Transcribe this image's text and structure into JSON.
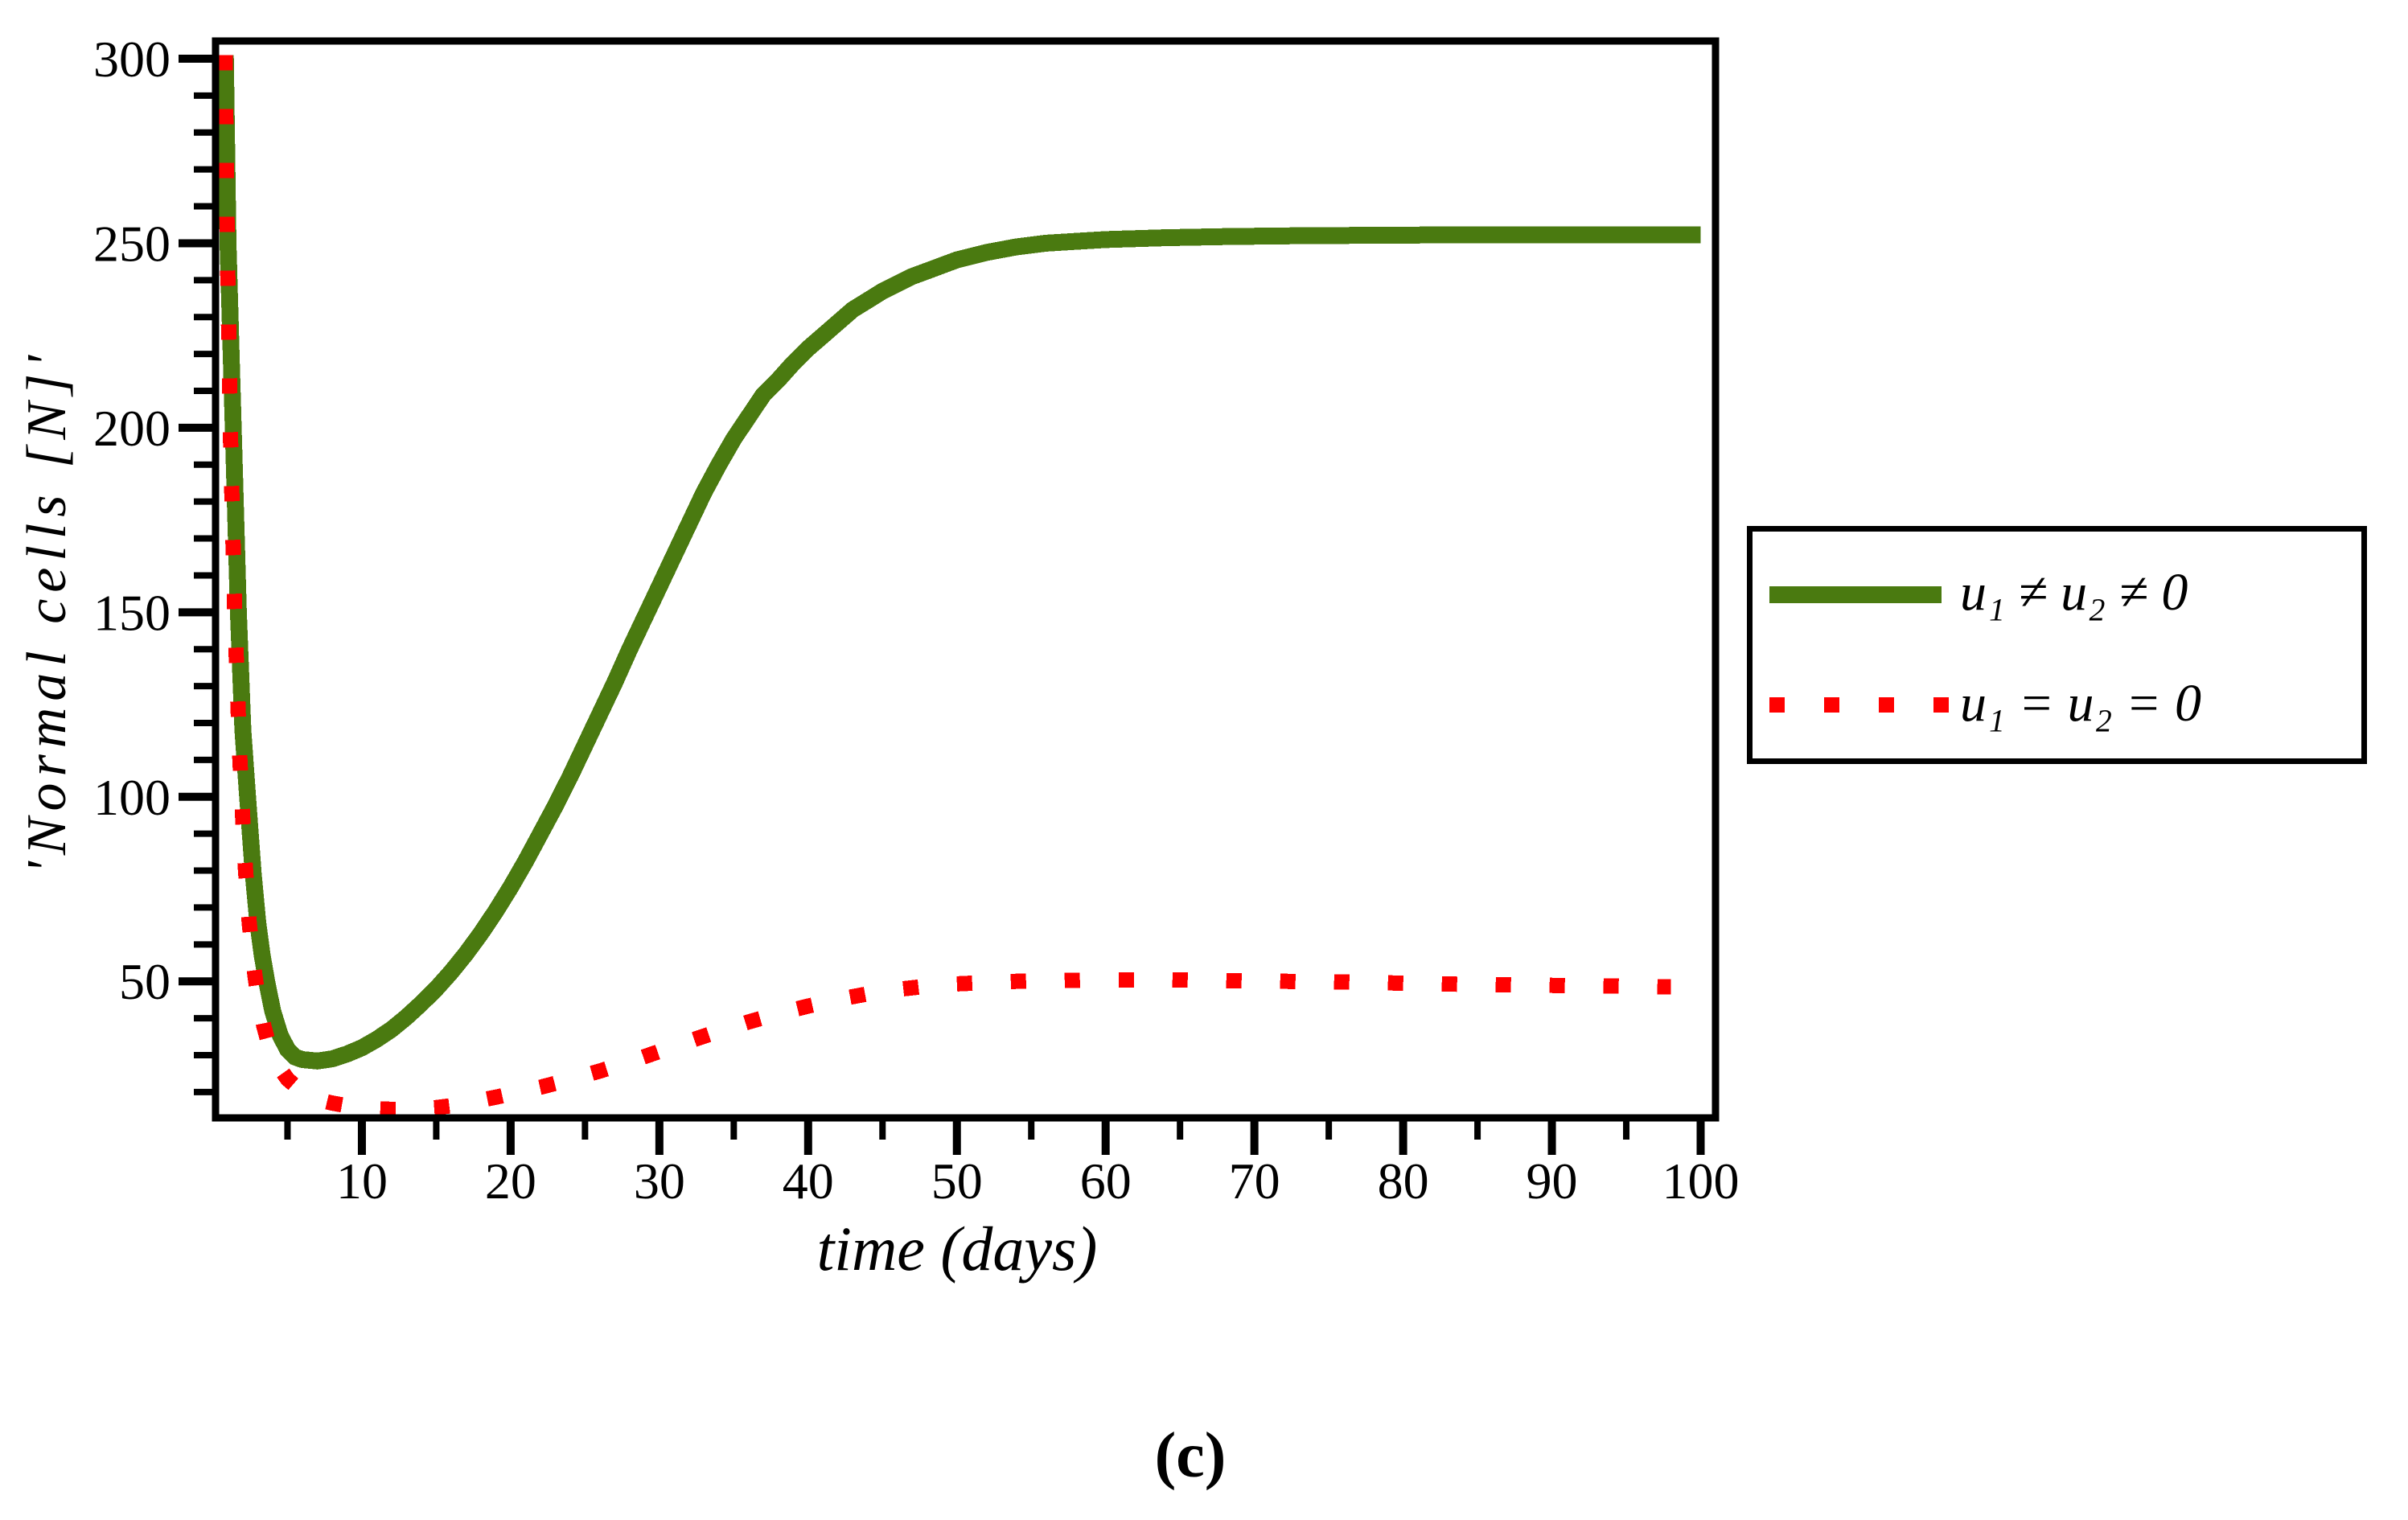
{
  "figure": {
    "caption": "(c)"
  },
  "colors": {
    "series_treated": "#4a7a10",
    "series_untreated": "#ff0000",
    "axis": "#000000",
    "background": "#ffffff"
  },
  "legend": {
    "items": [
      {
        "label": "u₁ ≠ u₂ ≠ 0",
        "swatch": "green-solid-line"
      },
      {
        "label": "u₁ = u₂ = 0",
        "swatch": "red-dotted-line"
      }
    ]
  },
  "chart_data": {
    "type": "line",
    "title": "",
    "xlabel": "time (days)",
    "ylabel": "'Normal cells [N]'",
    "xlim": [
      0,
      101
    ],
    "ylim": [
      13,
      300
    ],
    "grid": false,
    "legend_position": "outside-right",
    "x_ticks_major": [
      10,
      20,
      30,
      40,
      50,
      60,
      70,
      80,
      90,
      100
    ],
    "x_tick_major_step": 10,
    "x_tick_minor_step": 5,
    "y_ticks_major": [
      50,
      100,
      150,
      200,
      250,
      300
    ],
    "y_tick_major_step": 50,
    "y_tick_minor_step": 10,
    "series": [
      {
        "name": "u₁ ≠ u₂ ≠ 0",
        "style": "solid",
        "color": "#4a7a10",
        "stroke_width": 21,
        "points": [
          [
            0.82,
            301
          ],
          [
            1.0,
            250
          ],
          [
            1.35,
            200
          ],
          [
            1.7,
            150
          ],
          [
            2.0,
            118
          ],
          [
            2.35,
            98
          ],
          [
            2.7,
            79
          ],
          [
            3.0,
            66
          ],
          [
            3.3,
            57
          ],
          [
            3.6,
            50
          ],
          [
            4.0,
            42
          ],
          [
            4.5,
            35.5
          ],
          [
            5.0,
            31.5
          ],
          [
            5.5,
            29.5
          ],
          [
            6.0,
            28.8
          ],
          [
            7.0,
            28.4
          ],
          [
            8.0,
            29
          ],
          [
            9,
            30.3
          ],
          [
            10,
            32
          ],
          [
            11,
            34.3
          ],
          [
            12,
            37
          ],
          [
            13,
            40.3
          ],
          [
            14,
            44
          ],
          [
            15,
            48
          ],
          [
            16,
            52.5
          ],
          [
            17,
            57.5
          ],
          [
            18,
            63
          ],
          [
            19,
            69
          ],
          [
            20,
            75.5
          ],
          [
            21,
            82.5
          ],
          [
            22,
            90
          ],
          [
            23,
            97.5
          ],
          [
            24,
            105.5
          ],
          [
            25,
            114
          ],
          [
            26,
            122.5
          ],
          [
            27,
            131
          ],
          [
            28,
            140
          ],
          [
            29,
            148.5
          ],
          [
            30,
            157
          ],
          [
            31,
            165.5
          ],
          [
            32,
            174
          ],
          [
            33,
            182.5
          ],
          [
            34,
            190
          ],
          [
            35,
            197
          ],
          [
            36,
            203
          ],
          [
            37,
            209
          ],
          [
            38,
            213
          ],
          [
            39,
            217.5
          ],
          [
            40,
            221.5
          ],
          [
            41,
            225
          ],
          [
            42,
            228.5
          ],
          [
            43,
            232
          ],
          [
            44,
            234.5
          ],
          [
            45,
            237
          ],
          [
            46,
            239
          ],
          [
            47,
            241
          ],
          [
            48,
            242.5
          ],
          [
            49,
            244
          ],
          [
            50,
            245.5
          ],
          [
            52,
            247.5
          ],
          [
            54,
            249
          ],
          [
            56,
            250
          ],
          [
            58,
            250.5
          ],
          [
            60,
            251
          ],
          [
            64,
            251.5
          ],
          [
            68,
            251.8
          ],
          [
            72,
            252
          ],
          [
            80,
            252.2
          ],
          [
            90,
            252.3
          ],
          [
            100,
            252.3
          ]
        ]
      },
      {
        "name": "u₁ = u₂ = 0",
        "style": "dotted",
        "color": "#ff0000",
        "stroke_width": 19,
        "points": [
          [
            0.8,
            301
          ],
          [
            0.95,
            250
          ],
          [
            1.15,
            200
          ],
          [
            1.45,
            150
          ],
          [
            1.8,
            110
          ],
          [
            2.1,
            85
          ],
          [
            2.4,
            67
          ],
          [
            2.7,
            55
          ],
          [
            3.0,
            46
          ],
          [
            3.4,
            38
          ],
          [
            3.8,
            32
          ],
          [
            4.3,
            27.5
          ],
          [
            5,
            23.5
          ],
          [
            6,
            20
          ],
          [
            7,
            18
          ],
          [
            8,
            17
          ],
          [
            9,
            16.3
          ],
          [
            10,
            15.8
          ],
          [
            11,
            15.5
          ],
          [
            12,
            15.3
          ],
          [
            13,
            15.3
          ],
          [
            14,
            15.5
          ],
          [
            15,
            15.8
          ],
          [
            16,
            16.3
          ],
          [
            17,
            17
          ],
          [
            18,
            17.8
          ],
          [
            19,
            18.6
          ],
          [
            20,
            19.5
          ],
          [
            22,
            21.3
          ],
          [
            24,
            23.4
          ],
          [
            26,
            25.7
          ],
          [
            28,
            28.2
          ],
          [
            30,
            31
          ],
          [
            32,
            33.8
          ],
          [
            34,
            36.5
          ],
          [
            36,
            39
          ],
          [
            38,
            41.3
          ],
          [
            40,
            43.3
          ],
          [
            42,
            45.1
          ],
          [
            44,
            46.6
          ],
          [
            46,
            47.8
          ],
          [
            48,
            48.7
          ],
          [
            50,
            49.3
          ],
          [
            53,
            49.9
          ],
          [
            56,
            50.2
          ],
          [
            60,
            50.4
          ],
          [
            64,
            50.4
          ],
          [
            68,
            50.2
          ],
          [
            72,
            50
          ],
          [
            76,
            49.8
          ],
          [
            80,
            49.5
          ],
          [
            84,
            49.2
          ],
          [
            88,
            49
          ],
          [
            92,
            48.8
          ],
          [
            95,
            48.7
          ],
          [
            98,
            48.5
          ]
        ]
      }
    ]
  }
}
